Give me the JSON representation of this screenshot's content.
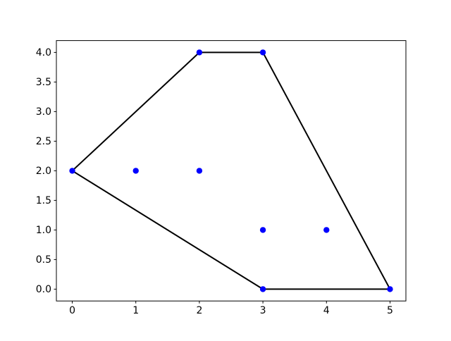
{
  "chart_data": {
    "type": "scatter",
    "title": "",
    "xlabel": "",
    "ylabel": "",
    "points": [
      {
        "x": 0,
        "y": 2
      },
      {
        "x": 1,
        "y": 2
      },
      {
        "x": 2,
        "y": 2
      },
      {
        "x": 2,
        "y": 4
      },
      {
        "x": 3,
        "y": 4
      },
      {
        "x": 3,
        "y": 1
      },
      {
        "x": 4,
        "y": 1
      },
      {
        "x": 3,
        "y": 0
      },
      {
        "x": 5,
        "y": 0
      }
    ],
    "hull_outline": [
      {
        "x": 0,
        "y": 2
      },
      {
        "x": 2,
        "y": 4
      },
      {
        "x": 3,
        "y": 4
      },
      {
        "x": 5,
        "y": 0
      },
      {
        "x": 3,
        "y": 0
      }
    ],
    "hull_closed": true,
    "x_ticks": [
      0,
      1,
      2,
      3,
      4,
      5
    ],
    "x_tick_labels": [
      "0",
      "1",
      "2",
      "3",
      "4",
      "5"
    ],
    "y_ticks": [
      0.0,
      0.5,
      1.0,
      1.5,
      2.0,
      2.5,
      3.0,
      3.5,
      4.0
    ],
    "y_tick_labels": [
      "0.0",
      "0.5",
      "1.0",
      "1.5",
      "2.0",
      "2.5",
      "3.0",
      "3.5",
      "4.0"
    ],
    "xlim": [
      -0.25,
      5.25
    ],
    "ylim": [
      -0.2,
      4.2
    ],
    "grid": false,
    "legend": null,
    "colors": {
      "marker": "#0000ff",
      "line": "#000000",
      "frame": "#000000",
      "background": "#ffffff"
    }
  }
}
